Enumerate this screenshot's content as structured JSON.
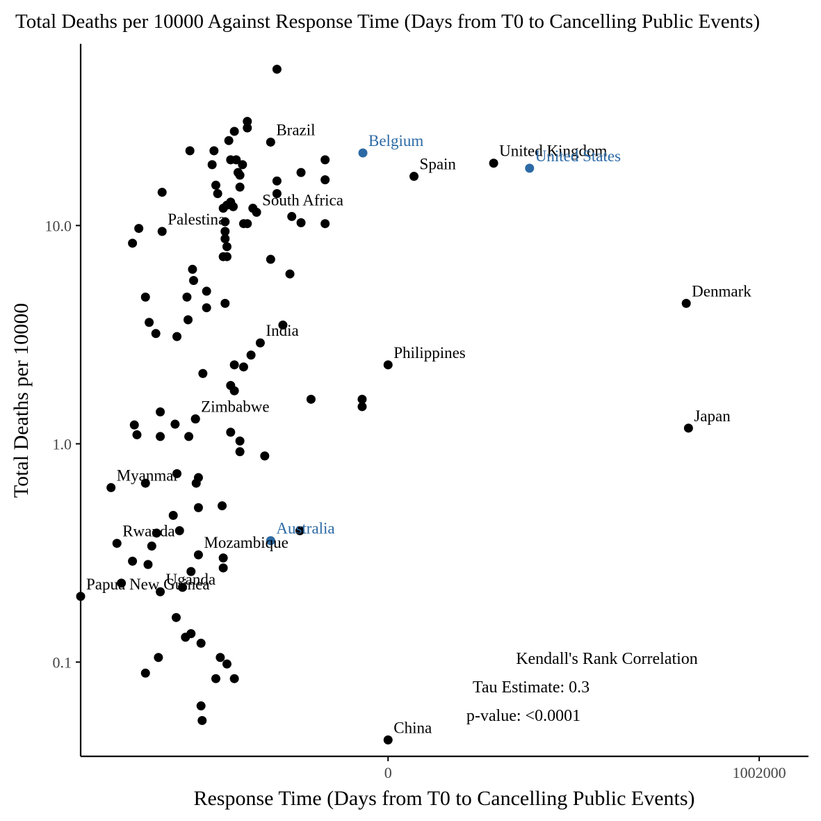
{
  "chart_data": {
    "type": "scatter",
    "title": "Total Deaths per 10000 Against Response Time (Days from T0 to Cancelling Public Events)",
    "xlabel": "Response Time (Days from T0 to Cancelling Public Events)",
    "ylabel": "Total Deaths per 10000",
    "x_scale": "linear",
    "y_scale": "log10",
    "xlim": [
      -830000,
      1135000
    ],
    "ylim": [
      0.037,
      68
    ],
    "x_ticks": [
      0,
      1002000
    ],
    "x_tick_labels": [
      "0",
      "1002000"
    ],
    "y_ticks": [
      0.1,
      1.0,
      10.0
    ],
    "y_tick_labels": [
      "0.1",
      "1.0",
      "10.0"
    ],
    "grid": false,
    "legend": "none",
    "colors": {
      "default_point": "#000000",
      "highlight_point": "#2c6aa5",
      "text": "#000000"
    },
    "annotation": {
      "title": "Kendall's Rank Correlation",
      "tau": "Tau Estimate: 0.3",
      "pvalue": "p-value: <0.0001"
    },
    "labeled_points": [
      {
        "label": "Brazil",
        "x": -317000,
        "y": 24.1,
        "highlight": false
      },
      {
        "label": "Belgium",
        "x": -68000,
        "y": 21.5,
        "highlight": true
      },
      {
        "label": "United Kingdom",
        "x": 285000,
        "y": 19.3,
        "highlight": false
      },
      {
        "label": "United States",
        "x": 382000,
        "y": 18.3,
        "highlight": true
      },
      {
        "label": "Spain",
        "x": 70000,
        "y": 16.8,
        "highlight": false
      },
      {
        "label": "South Africa",
        "x": -355000,
        "y": 11.5,
        "highlight": false
      },
      {
        "label": "Palestina",
        "x": -610000,
        "y": 9.4,
        "highlight": false
      },
      {
        "label": "Denmark",
        "x": 805000,
        "y": 4.4,
        "highlight": false
      },
      {
        "label": "India",
        "x": -345000,
        "y": 2.9,
        "highlight": false
      },
      {
        "label": "Philippines",
        "x": 0,
        "y": 2.3,
        "highlight": false
      },
      {
        "label": "Zimbabwe",
        "x": -520000,
        "y": 1.3,
        "highlight": false
      },
      {
        "label": "Japan",
        "x": 811000,
        "y": 1.18,
        "highlight": false
      },
      {
        "label": "Myanmar",
        "x": -748000,
        "y": 0.63,
        "highlight": false
      },
      {
        "label": "Australia",
        "x": -317000,
        "y": 0.36,
        "highlight": true
      },
      {
        "label": "Rwanda",
        "x": -732000,
        "y": 0.35,
        "highlight": false
      },
      {
        "label": "Mozambique",
        "x": -512000,
        "y": 0.31,
        "highlight": false
      },
      {
        "label": "Uganda",
        "x": -615000,
        "y": 0.21,
        "highlight": false
      },
      {
        "label": "Papua New Guinea",
        "x": -830000,
        "y": 0.2,
        "highlight": false
      },
      {
        "label": "China",
        "x": 0,
        "y": 0.044,
        "highlight": false
      }
    ],
    "points": [
      {
        "x": -300000,
        "y": 52.0
      },
      {
        "x": -380000,
        "y": 30.0
      },
      {
        "x": -380000,
        "y": 28.0
      },
      {
        "x": -415000,
        "y": 27.0
      },
      {
        "x": -430000,
        "y": 24.5
      },
      {
        "x": -535000,
        "y": 22.0
      },
      {
        "x": -470000,
        "y": 22.0
      },
      {
        "x": -170000,
        "y": 20.0
      },
      {
        "x": -475000,
        "y": 19.0
      },
      {
        "x": -425000,
        "y": 20.0
      },
      {
        "x": -410000,
        "y": 20.0
      },
      {
        "x": -393000,
        "y": 19.0
      },
      {
        "x": -405000,
        "y": 17.5
      },
      {
        "x": -400000,
        "y": 17.0
      },
      {
        "x": -235000,
        "y": 17.5
      },
      {
        "x": -300000,
        "y": 16.0
      },
      {
        "x": -170000,
        "y": 16.2
      },
      {
        "x": -465000,
        "y": 15.3
      },
      {
        "x": -400000,
        "y": 15.0
      },
      {
        "x": -610000,
        "y": 14.2
      },
      {
        "x": -460000,
        "y": 14.0
      },
      {
        "x": -300000,
        "y": 14.0
      },
      {
        "x": -425000,
        "y": 12.8
      },
      {
        "x": -435000,
        "y": 12.4
      },
      {
        "x": -418000,
        "y": 12.2
      },
      {
        "x": -445000,
        "y": 12.0
      },
      {
        "x": -365000,
        "y": 12.0
      },
      {
        "x": -260000,
        "y": 11.0
      },
      {
        "x": -440000,
        "y": 10.4
      },
      {
        "x": -390000,
        "y": 10.2
      },
      {
        "x": -380000,
        "y": 10.2
      },
      {
        "x": -235000,
        "y": 10.3
      },
      {
        "x": -170000,
        "y": 10.2
      },
      {
        "x": -673000,
        "y": 9.7
      },
      {
        "x": -440000,
        "y": 9.4
      },
      {
        "x": -440000,
        "y": 8.7
      },
      {
        "x": -435000,
        "y": 8.0
      },
      {
        "x": -690000,
        "y": 8.3
      },
      {
        "x": -445000,
        "y": 7.2
      },
      {
        "x": -435000,
        "y": 7.2
      },
      {
        "x": -317000,
        "y": 7.0
      },
      {
        "x": -528000,
        "y": 6.3
      },
      {
        "x": -265000,
        "y": 6.0
      },
      {
        "x": -525000,
        "y": 5.6
      },
      {
        "x": -490000,
        "y": 5.0
      },
      {
        "x": -655000,
        "y": 4.7
      },
      {
        "x": -543000,
        "y": 4.7
      },
      {
        "x": -440000,
        "y": 4.4
      },
      {
        "x": -490000,
        "y": 4.2
      },
      {
        "x": -645000,
        "y": 3.6
      },
      {
        "x": -540000,
        "y": 3.7
      },
      {
        "x": -284000,
        "y": 3.5
      },
      {
        "x": -627000,
        "y": 3.2
      },
      {
        "x": -570000,
        "y": 3.1
      },
      {
        "x": -370000,
        "y": 2.55
      },
      {
        "x": -390000,
        "y": 2.25
      },
      {
        "x": -415000,
        "y": 2.3
      },
      {
        "x": -500000,
        "y": 2.1
      },
      {
        "x": -425000,
        "y": 1.85
      },
      {
        "x": -415000,
        "y": 1.75
      },
      {
        "x": -208000,
        "y": 1.6
      },
      {
        "x": -70000,
        "y": 1.6
      },
      {
        "x": -70000,
        "y": 1.48
      },
      {
        "x": -615000,
        "y": 1.4
      },
      {
        "x": -520000,
        "y": 1.3
      },
      {
        "x": -685000,
        "y": 1.22
      },
      {
        "x": -575000,
        "y": 1.23
      },
      {
        "x": -425000,
        "y": 1.13
      },
      {
        "x": -678000,
        "y": 1.1
      },
      {
        "x": -615000,
        "y": 1.08
      },
      {
        "x": -538000,
        "y": 1.08
      },
      {
        "x": -400000,
        "y": 1.03
      },
      {
        "x": -400000,
        "y": 0.92
      },
      {
        "x": -333000,
        "y": 0.88
      },
      {
        "x": -570000,
        "y": 0.73
      },
      {
        "x": -512000,
        "y": 0.7
      },
      {
        "x": -655000,
        "y": 0.66
      },
      {
        "x": -518000,
        "y": 0.66
      },
      {
        "x": -512000,
        "y": 0.51
      },
      {
        "x": -448000,
        "y": 0.52
      },
      {
        "x": -580000,
        "y": 0.47
      },
      {
        "x": -563000,
        "y": 0.4
      },
      {
        "x": -625000,
        "y": 0.39
      },
      {
        "x": -238000,
        "y": 0.4
      },
      {
        "x": -638000,
        "y": 0.34
      },
      {
        "x": -445000,
        "y": 0.3
      },
      {
        "x": -690000,
        "y": 0.29
      },
      {
        "x": -648000,
        "y": 0.28
      },
      {
        "x": -445000,
        "y": 0.27
      },
      {
        "x": -532000,
        "y": 0.26
      },
      {
        "x": -720000,
        "y": 0.23
      },
      {
        "x": -555000,
        "y": 0.22
      },
      {
        "x": -572000,
        "y": 0.16
      },
      {
        "x": -547000,
        "y": 0.13
      },
      {
        "x": -532000,
        "y": 0.135
      },
      {
        "x": -505000,
        "y": 0.122
      },
      {
        "x": -620000,
        "y": 0.105
      },
      {
        "x": -453000,
        "y": 0.105
      },
      {
        "x": -435000,
        "y": 0.098
      },
      {
        "x": -655000,
        "y": 0.089
      },
      {
        "x": -465000,
        "y": 0.084
      },
      {
        "x": -415000,
        "y": 0.084
      },
      {
        "x": -505000,
        "y": 0.063
      },
      {
        "x": -502000,
        "y": 0.054
      }
    ]
  }
}
